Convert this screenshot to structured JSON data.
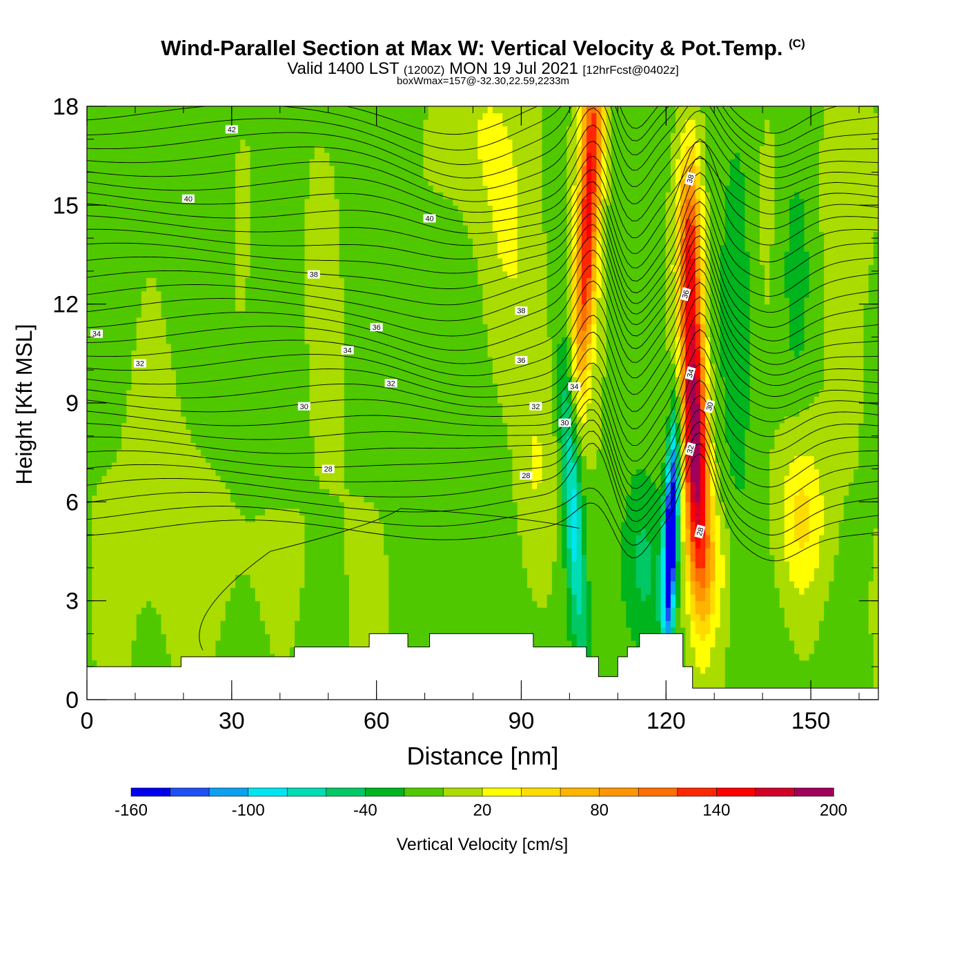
{
  "title": {
    "main": "Wind-Parallel Section at Max W: Vertical Velocity & Pot.Temp.",
    "copyright": "(C)",
    "valid_prefix": "Valid 1400 LST",
    "valid_utc": "(1200Z)",
    "valid_date": "MON 19 Jul 2021",
    "forecast": "[12hrFcst@0402z]",
    "box_info": "boxWmax=157@-32.30,22.59,2233m"
  },
  "chart_data": {
    "type": "heatmap",
    "xlabel": "Distance [nm]",
    "ylabel": "Height [Kft MSL]",
    "xlim": [
      0,
      164
    ],
    "ylim": [
      0,
      18
    ],
    "x_ticks": [
      0,
      30,
      60,
      90,
      120,
      150
    ],
    "y_ticks": [
      0,
      3,
      6,
      9,
      12,
      15,
      18
    ],
    "fill_variable": "Vertical Velocity [cm/s]",
    "colorbar": {
      "label": "Vertical Velocity [cm/s]",
      "bounds": [
        -160,
        -140,
        -120,
        -100,
        -80,
        -60,
        -40,
        -20,
        0,
        20,
        40,
        60,
        80,
        100,
        120,
        140,
        160,
        180,
        200
      ],
      "tick_labels": [
        "-160",
        "-100",
        "-40",
        "20",
        "80",
        "140",
        "200"
      ],
      "colors": [
        "#0000ee",
        "#1e50f5",
        "#0ca0f0",
        "#00e6f0",
        "#00dcb4",
        "#00c864",
        "#00b41e",
        "#50c800",
        "#aadc00",
        "#ffff00",
        "#ffdc00",
        "#ffb400",
        "#ff9600",
        "#ff6e00",
        "#ff2800",
        "#ff0000",
        "#d20028",
        "#a0005a"
      ]
    },
    "vertical_velocity_features": [
      {
        "x": 105,
        "y_range": [
          7,
          18
        ],
        "value": 140,
        "kind": "updraft"
      },
      {
        "x": 126,
        "y_range": [
          4,
          16
        ],
        "value": 200,
        "kind": "updraft"
      },
      {
        "x": 121,
        "y_range": [
          2,
          8
        ],
        "value": -160,
        "kind": "downdraft"
      },
      {
        "x": 101,
        "y_range": [
          2,
          11
        ],
        "value": -80,
        "kind": "downdraft"
      },
      {
        "x": 148,
        "y_range": [
          4,
          8
        ],
        "value": 40,
        "kind": "weak updraft"
      }
    ],
    "contour_variable": "Potential Temperature",
    "theta_contour_labels": [
      {
        "label": "42",
        "x": 30,
        "y": 17.3
      },
      {
        "label": "40",
        "x": 21,
        "y": 15.2
      },
      {
        "label": "40",
        "x": 71,
        "y": 14.6
      },
      {
        "label": "38",
        "x": 47,
        "y": 12.9
      },
      {
        "label": "38",
        "x": 90,
        "y": 11.8
      },
      {
        "label": "36",
        "x": 60,
        "y": 11.3
      },
      {
        "label": "36",
        "x": 90,
        "y": 10.3
      },
      {
        "label": "34",
        "x": 2,
        "y": 11.1
      },
      {
        "label": "34",
        "x": 54,
        "y": 10.6
      },
      {
        "label": "34",
        "x": 101,
        "y": 9.5
      },
      {
        "label": "32",
        "x": 11,
        "y": 10.2
      },
      {
        "label": "32",
        "x": 63,
        "y": 9.6
      },
      {
        "label": "32",
        "x": 93,
        "y": 8.9
      },
      {
        "label": "30",
        "x": 45,
        "y": 8.9
      },
      {
        "label": "30",
        "x": 99,
        "y": 8.4
      },
      {
        "label": "28",
        "x": 50,
        "y": 7.0
      },
      {
        "label": "28",
        "x": 91,
        "y": 6.8
      },
      {
        "label": "38",
        "x": 125,
        "y": 15.8
      },
      {
        "label": "36",
        "x": 124,
        "y": 12.3
      },
      {
        "label": "34",
        "x": 125,
        "y": 9.9
      },
      {
        "label": "30",
        "x": 129,
        "y": 8.9
      },
      {
        "label": "32",
        "x": 125,
        "y": 7.6
      },
      {
        "label": "28",
        "x": 127,
        "y": 5.1
      }
    ],
    "terrain": [
      [
        0,
        1.0
      ],
      [
        19.5,
        1.0
      ],
      [
        19.5,
        1.3
      ],
      [
        43,
        1.3
      ],
      [
        43,
        1.6
      ],
      [
        58.5,
        1.6
      ],
      [
        58.5,
        2.0
      ],
      [
        66.5,
        2.0
      ],
      [
        66.5,
        1.6
      ],
      [
        71,
        1.6
      ],
      [
        71,
        2.0
      ],
      [
        92.5,
        2.0
      ],
      [
        92.5,
        1.6
      ],
      [
        103.5,
        1.6
      ],
      [
        103.5,
        1.3
      ],
      [
        106,
        1.3
      ],
      [
        106,
        0.7
      ],
      [
        110,
        0.7
      ],
      [
        110,
        1.3
      ],
      [
        112,
        1.3
      ],
      [
        112,
        1.6
      ],
      [
        114.5,
        1.6
      ],
      [
        114.5,
        2.0
      ],
      [
        123.5,
        2.0
      ],
      [
        123.5,
        1.0
      ],
      [
        125.5,
        1.0
      ],
      [
        125.5,
        0.35
      ],
      [
        164,
        0.35
      ]
    ]
  }
}
